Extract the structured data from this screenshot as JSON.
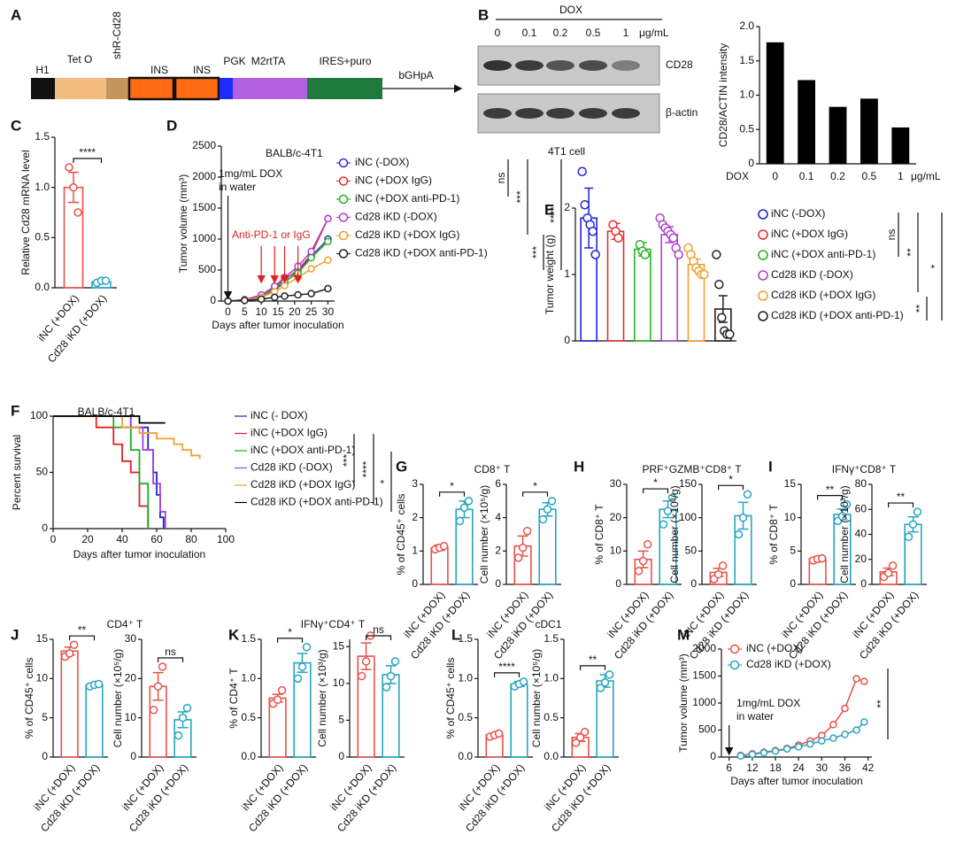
{
  "diagram": {
    "panel": "A",
    "segments": [
      {
        "label": "H1",
        "color": "#111111"
      },
      {
        "label": "Tet O",
        "color": "#f2bb7f"
      },
      {
        "label": "shR-Cd28",
        "color": "#c4965e"
      },
      {
        "label": "INS",
        "color": "#ff6a12"
      },
      {
        "label": "INS",
        "color": "#ff6a12"
      },
      {
        "label": "PGK",
        "color": "#1a2cff"
      },
      {
        "label": "M2rtTA",
        "color": "#b25fe0"
      },
      {
        "label": "IRES+puro",
        "color": "#1e7a3c"
      }
    ],
    "end_label": "bGHpA"
  },
  "blot": {
    "panel": "B",
    "title": "DOX",
    "lanes": [
      "0",
      "0.1",
      "0.2",
      "0.5",
      "1"
    ],
    "unit": "μg/mL",
    "rows": [
      "CD28",
      "β-actin"
    ],
    "caption": "4T1 cell"
  },
  "chart_data": [
    {
      "type": "bar",
      "ylabel": "CD28/ACTIN intensity",
      "xlabel": "DOX",
      "xunit": "μg/mL",
      "categories": [
        "0",
        "0.1",
        "0.2",
        "0.5",
        "1"
      ],
      "values": [
        1.77,
        1.22,
        0.83,
        0.95,
        0.53
      ],
      "color": "#000000",
      "ylim": [
        0,
        2
      ],
      "yticks": [
        0,
        0.5,
        {
          "value": 1,
          "label": "1.0"
        },
        1.5,
        {
          "value": 2,
          "label": "2.0"
        }
      ]
    },
    {
      "type": "dotpair",
      "panel": "C",
      "categories": [
        "iNC (+DOX)",
        "Cd28 iKD (+DOX)"
      ],
      "colors": [
        "#e8524a",
        "#26a5c0"
      ],
      "charts": [
        {
          "ylabel": "Relative Cd28 mRNA level",
          "ylim": [
            0,
            1.5
          ],
          "yticks": [
            {
              "value": 0,
              "label": "0.0"
            },
            0.5,
            {
              "value": 1,
              "label": "1.0"
            },
            1.5
          ],
          "values": [
            1.0,
            0.06
          ],
          "errors": [
            0.15,
            0.01
          ],
          "points": [
            [
              1.2,
              1.0,
              0.75
            ],
            [
              0.05,
              0.07,
              0.07
            ]
          ],
          "significance": "****"
        }
      ]
    },
    {
      "type": "line",
      "panel": "D",
      "title": "BALB/c-4T1",
      "ylabel": "Tumor volume (mm³)",
      "xlabel": "Days after tumor inoculation",
      "annotation": [
        "1mg/mL DOX",
        "in water"
      ],
      "treatment_label": "Anti-PD-1 or IgG",
      "dox_day": 0,
      "treatment_days": [
        10,
        14,
        17,
        21
      ],
      "x": [
        0,
        5,
        10,
        14,
        17,
        21,
        25,
        30
      ],
      "xlim": [
        -2,
        32
      ],
      "xticks": [
        0,
        5,
        10,
        15,
        20,
        25,
        30
      ],
      "ylim": [
        0,
        2500
      ],
      "yticks": [
        0,
        500,
        1000,
        1500,
        2000,
        2500
      ],
      "series": [
        {
          "name": "iNC (-DOX)",
          "color": "#3333cc",
          "values": [
            0,
            20,
            80,
            180,
            300,
            480,
            720,
            1000
          ]
        },
        {
          "name": "iNC (+DOX IgG)",
          "color": "#e53030",
          "values": [
            0,
            25,
            90,
            220,
            350,
            500,
            750,
            1330
          ]
        },
        {
          "name": "iNC (+DOX anti-PD-1)",
          "color": "#27b327",
          "values": [
            0,
            20,
            70,
            200,
            320,
            450,
            700,
            960
          ]
        },
        {
          "name": "Cd28 iKD (-DOX)",
          "color": "#b040d0",
          "values": [
            0,
            20,
            100,
            240,
            380,
            560,
            800,
            1330
          ]
        },
        {
          "name": "Cd28 iKD (+DOX IgG)",
          "color": "#f0a030",
          "values": [
            0,
            15,
            60,
            150,
            250,
            380,
            520,
            660
          ]
        },
        {
          "name": "Cd28 iKD (+DOX anti-PD-1)",
          "color": "#222222",
          "values": [
            0,
            10,
            30,
            60,
            80,
            100,
            120,
            200
          ]
        }
      ],
      "significance": [
        "ns",
        "***",
        "****",
        "***"
      ]
    },
    {
      "type": "dotmulti",
      "panel": "E",
      "ylabel": "Tumor weight (g)",
      "ylim": [
        0,
        2
      ],
      "yticks": [
        0,
        1,
        2
      ],
      "categories": [
        "iNC (-DOX)",
        "iNC (+DOX IgG)",
        "iNC (+DOX anti-PD-1)",
        "Cd28 iKD (-DOX)",
        "Cd28 iKD (+DOX IgG)",
        "Cd28 iKD (+DOX anti-PD-1)"
      ],
      "colors": [
        "#2222dd",
        "#e53030",
        "#27b327",
        "#b040d0",
        "#f0a030",
        "#222222"
      ],
      "values": [
        1.85,
        1.65,
        1.38,
        1.6,
        1.15,
        0.48
      ],
      "errors": [
        0.45,
        0.12,
        0.1,
        0.12,
        0.08,
        0.2
      ],
      "points": [
        [
          2.55,
          2.05,
          1.85,
          1.75,
          1.65,
          1.3
        ],
        [
          1.75,
          1.65,
          1.55
        ],
        [
          1.45,
          1.35,
          1.3
        ],
        [
          1.85,
          1.75,
          1.7,
          1.65,
          1.6,
          1.55,
          1.4,
          1.3
        ],
        [
          1.4,
          1.3,
          1.2,
          1.1,
          1.05,
          1.0,
          1.0
        ],
        [
          1.3,
          0.85,
          0.35,
          0.15,
          0.1,
          0.1
        ]
      ],
      "significance": [
        "ns",
        "**",
        "**",
        "*"
      ]
    },
    {
      "type": "survival",
      "panel": "F",
      "title": "BALB/c-4T1",
      "ylabel": "Percent survival",
      "xlabel": "Days after tumor inoculation",
      "xlim": [
        0,
        100
      ],
      "xticks": [
        0,
        20,
        40,
        60,
        80,
        100
      ],
      "ylim": [
        0,
        100
      ],
      "yticks": [
        0,
        50,
        100
      ],
      "series": [
        {
          "name": "iNC (- DOX)",
          "color": "#2222cc",
          "x": [
            0,
            45,
            55,
            58,
            60,
            62,
            64
          ],
          "values": [
            100,
            90,
            70,
            50,
            30,
            10,
            0
          ]
        },
        {
          "name": "iNC (+DOX IgG)",
          "color": "#e52020",
          "x": [
            0,
            25,
            35,
            40,
            45,
            50,
            55
          ],
          "values": [
            100,
            90,
            75,
            60,
            50,
            20,
            0
          ]
        },
        {
          "name": "iNC (+DOX anti-PD-1)",
          "color": "#22aa22",
          "x": [
            0,
            35,
            45,
            50,
            55
          ],
          "values": [
            100,
            90,
            70,
            40,
            0
          ]
        },
        {
          "name": "Cd28 iKD (-DOX)",
          "color": "#a040e0",
          "x": [
            0,
            45,
            52,
            58,
            62,
            65
          ],
          "values": [
            100,
            90,
            70,
            40,
            15,
            0
          ]
        },
        {
          "name": "Cd28 iKD (+DOX IgG)",
          "color": "#f0a030",
          "x": [
            0,
            40,
            50,
            60,
            70,
            75,
            80,
            85
          ],
          "values": [
            100,
            90,
            85,
            80,
            75,
            70,
            65,
            62
          ]
        },
        {
          "name": "Cd28 iKD (+DOX anti-PD-1)",
          "color": "#000000",
          "x": [
            0,
            50,
            65
          ],
          "values": [
            100,
            94,
            94
          ]
        }
      ],
      "significance": [
        "***",
        "****",
        "*"
      ]
    },
    {
      "type": "dotpair",
      "panel": "G",
      "title": "CD8⁺ T",
      "categories": [
        "iNC (+DOX)",
        "Cd28 iKD (+DOX)"
      ],
      "colors": [
        "#e8524a",
        "#26a5c0"
      ],
      "charts": [
        {
          "ylabel": "% of CD45⁺ cells",
          "ylim": [
            0,
            3
          ],
          "yticks": [
            0,
            1,
            2,
            3
          ],
          "values": [
            1.1,
            2.25
          ],
          "errors": [
            0.08,
            0.25
          ],
          "points": [
            [
              1.05,
              1.1,
              1.15
            ],
            [
              1.9,
              2.3,
              2.5
            ]
          ],
          "significance": "*"
        },
        {
          "ylabel": "Cell number (×10⁵/g)",
          "ylim": [
            0,
            6
          ],
          "yticks": [
            0,
            2,
            4,
            6
          ],
          "values": [
            2.3,
            4.5
          ],
          "errors": [
            0.6,
            0.4
          ],
          "points": [
            [
              1.6,
              2.2,
              3.2
            ],
            [
              3.9,
              4.5,
              5.0
            ]
          ],
          "significance": "*"
        }
      ]
    },
    {
      "type": "dotpair",
      "panel": "H",
      "title": "PRF⁺GZMB⁺CD8⁺ T",
      "categories": [
        "iNC (+DOX)",
        "Cd28 iKD (+DOX)"
      ],
      "colors": [
        "#e8524a",
        "#26a5c0"
      ],
      "charts": [
        {
          "ylabel": "% of CD8⁺ T",
          "ylim": [
            0,
            30
          ],
          "yticks": [
            0,
            10,
            20,
            30
          ],
          "values": [
            7.5,
            22.5
          ],
          "errors": [
            2.5,
            2.5
          ],
          "points": [
            [
              4,
              7,
              12
            ],
            [
              18,
              22,
              26
            ]
          ],
          "significance": "*"
        },
        {
          "ylabel": "Cell number (×10³/g)",
          "ylim": [
            0,
            150
          ],
          "yticks": [
            0,
            50,
            100,
            150
          ],
          "values": [
            18,
            103
          ],
          "errors": [
            6,
            20
          ],
          "points": [
            [
              8,
              15,
              28
            ],
            [
              75,
              100,
              135
            ]
          ],
          "significance": "*"
        }
      ]
    },
    {
      "type": "dotpair",
      "panel": "I",
      "title": "IFNγ⁺CD8⁺ T",
      "categories": [
        "iNC (+DOX)",
        "Cd28 iKD (+DOX)"
      ],
      "colors": [
        "#e8524a",
        "#26a5c0"
      ],
      "charts": [
        {
          "ylabel": "% of CD8⁺ T",
          "ylim": [
            0,
            15
          ],
          "yticks": [
            0,
            5,
            10,
            15
          ],
          "values": [
            3.8,
            10.5
          ],
          "errors": [
            0.1,
            0.8
          ],
          "points": [
            [
              3.6,
              3.8,
              3.9
            ],
            [
              9.5,
              10.2,
              12
            ]
          ],
          "significance": "**"
        },
        {
          "ylabel": "Cell number (×10³/g)",
          "ylim": [
            0,
            80
          ],
          "yticks": [
            0,
            20,
            40,
            60,
            80
          ],
          "values": [
            10,
            48
          ],
          "errors": [
            3,
            6
          ],
          "points": [
            [
              6,
              9,
              15
            ],
            [
              38,
              48,
              58
            ]
          ],
          "significance": "**"
        }
      ]
    },
    {
      "type": "dotpair",
      "panel": "J",
      "title": "CD4⁺ T",
      "categories": [
        "iNC (+DOX)",
        "Cd28 iKD (+DOX)"
      ],
      "colors": [
        "#e8524a",
        "#26a5c0"
      ],
      "charts": [
        {
          "ylabel": "% of CD45⁺ cells",
          "ylim": [
            0,
            15
          ],
          "yticks": [
            0,
            5,
            10,
            15
          ],
          "values": [
            13.5,
            9.2
          ],
          "errors": [
            0.5,
            0.1
          ],
          "points": [
            [
              12.8,
              13.2,
              14.3
            ],
            [
              9,
              9.2,
              9.3
            ]
          ],
          "significance": "**"
        },
        {
          "ylabel": "Cell number (×10⁵/g)",
          "ylim": [
            0,
            30
          ],
          "yticks": [
            0,
            10,
            20,
            30
          ],
          "values": [
            18,
            9.5
          ],
          "errors": [
            3.5,
            2
          ],
          "points": [
            [
              12,
              18,
              23
            ],
            [
              5.5,
              10,
              12.5
            ]
          ],
          "significance": "ns"
        }
      ]
    },
    {
      "type": "dotpair",
      "panel": "K",
      "title": "IFNγ⁺CD4⁺ T",
      "categories": [
        "iNC (+DOX)",
        "Cd28 iKD (+DOX)"
      ],
      "colors": [
        "#e8524a",
        "#26a5c0"
      ],
      "charts": [
        {
          "ylabel": "% of CD4⁺ T",
          "ylim": [
            0,
            1.5
          ],
          "yticks": [
            {
              "value": 0,
              "label": "0.0"
            },
            0.5,
            {
              "value": 1,
              "label": "1.0"
            },
            1.5
          ],
          "values": [
            0.75,
            1.2
          ],
          "errors": [
            0.05,
            0.12
          ],
          "points": [
            [
              0.68,
              0.73,
              0.85
            ],
            [
              1.0,
              1.15,
              1.4
            ]
          ],
          "significance": "*"
        },
        {
          "ylabel": "Cell number (×10³/g)",
          "ylim": [
            0,
            16
          ],
          "yticks": [
            0,
            5,
            10,
            15
          ],
          "values": [
            13.7,
            11.2
          ],
          "errors": [
            1.8,
            1.2
          ],
          "points": [
            [
              11,
              13,
              16.5
            ],
            [
              9.5,
              11,
              13
            ]
          ],
          "significance": "ns"
        }
      ]
    },
    {
      "type": "dotpair",
      "panel": "L",
      "title": "cDC1",
      "categories": [
        "iNC (+DOX)",
        "Cd28 iKD (+DOX)"
      ],
      "colors": [
        "#e8524a",
        "#26a5c0"
      ],
      "charts": [
        {
          "ylabel": "% of CD45⁺ cells",
          "ylim": [
            0,
            1.5
          ],
          "yticks": [
            {
              "value": 0,
              "label": "0.0"
            },
            0.5,
            {
              "value": 1,
              "label": "1.0"
            },
            1.5
          ],
          "values": [
            0.28,
            0.93
          ],
          "errors": [
            0.02,
            0.03
          ],
          "points": [
            [
              0.26,
              0.28,
              0.3
            ],
            [
              0.9,
              0.93,
              0.96
            ]
          ],
          "significance": "****"
        },
        {
          "ylabel": "Cell number (×10⁵/g)",
          "ylim": [
            0,
            1.5
          ],
          "yticks": [
            {
              "value": 0,
              "label": "0.0"
            },
            0.5,
            {
              "value": 1,
              "label": "1.0"
            },
            1.5
          ],
          "values": [
            0.25,
            0.97
          ],
          "errors": [
            0.05,
            0.08
          ],
          "points": [
            [
              0.18,
              0.25,
              0.32
            ],
            [
              0.88,
              0.95,
              1.05
            ]
          ],
          "significance": "**"
        }
      ]
    },
    {
      "type": "line",
      "panel": "M",
      "ylabel": "Tumor volume (mm³)",
      "xlabel": "Days after tumor inoculation",
      "annotation": [
        "1mg/mL DOX",
        "in water"
      ],
      "dox_day": 6,
      "x": [
        9,
        12,
        15,
        18,
        21,
        24,
        27,
        30,
        33,
        36,
        39,
        41
      ],
      "xlim": [
        4,
        43
      ],
      "xticks": [
        6,
        12,
        18,
        24,
        30,
        36,
        42
      ],
      "ylim": [
        0,
        2000
      ],
      "yticks": [
        0,
        500,
        1000,
        1500,
        2000
      ],
      "series": [
        {
          "name": "iNC (+DOX)",
          "color": "#e8524a",
          "values": [
            30,
            60,
            90,
            120,
            160,
            220,
            300,
            400,
            600,
            900,
            1450,
            1400
          ]
        },
        {
          "name": "Cd28 iKD (+DOX)",
          "color": "#26a5c0",
          "values": [
            20,
            50,
            80,
            110,
            150,
            190,
            240,
            300,
            350,
            420,
            500,
            650
          ]
        }
      ],
      "significance": [
        "**"
      ]
    }
  ]
}
